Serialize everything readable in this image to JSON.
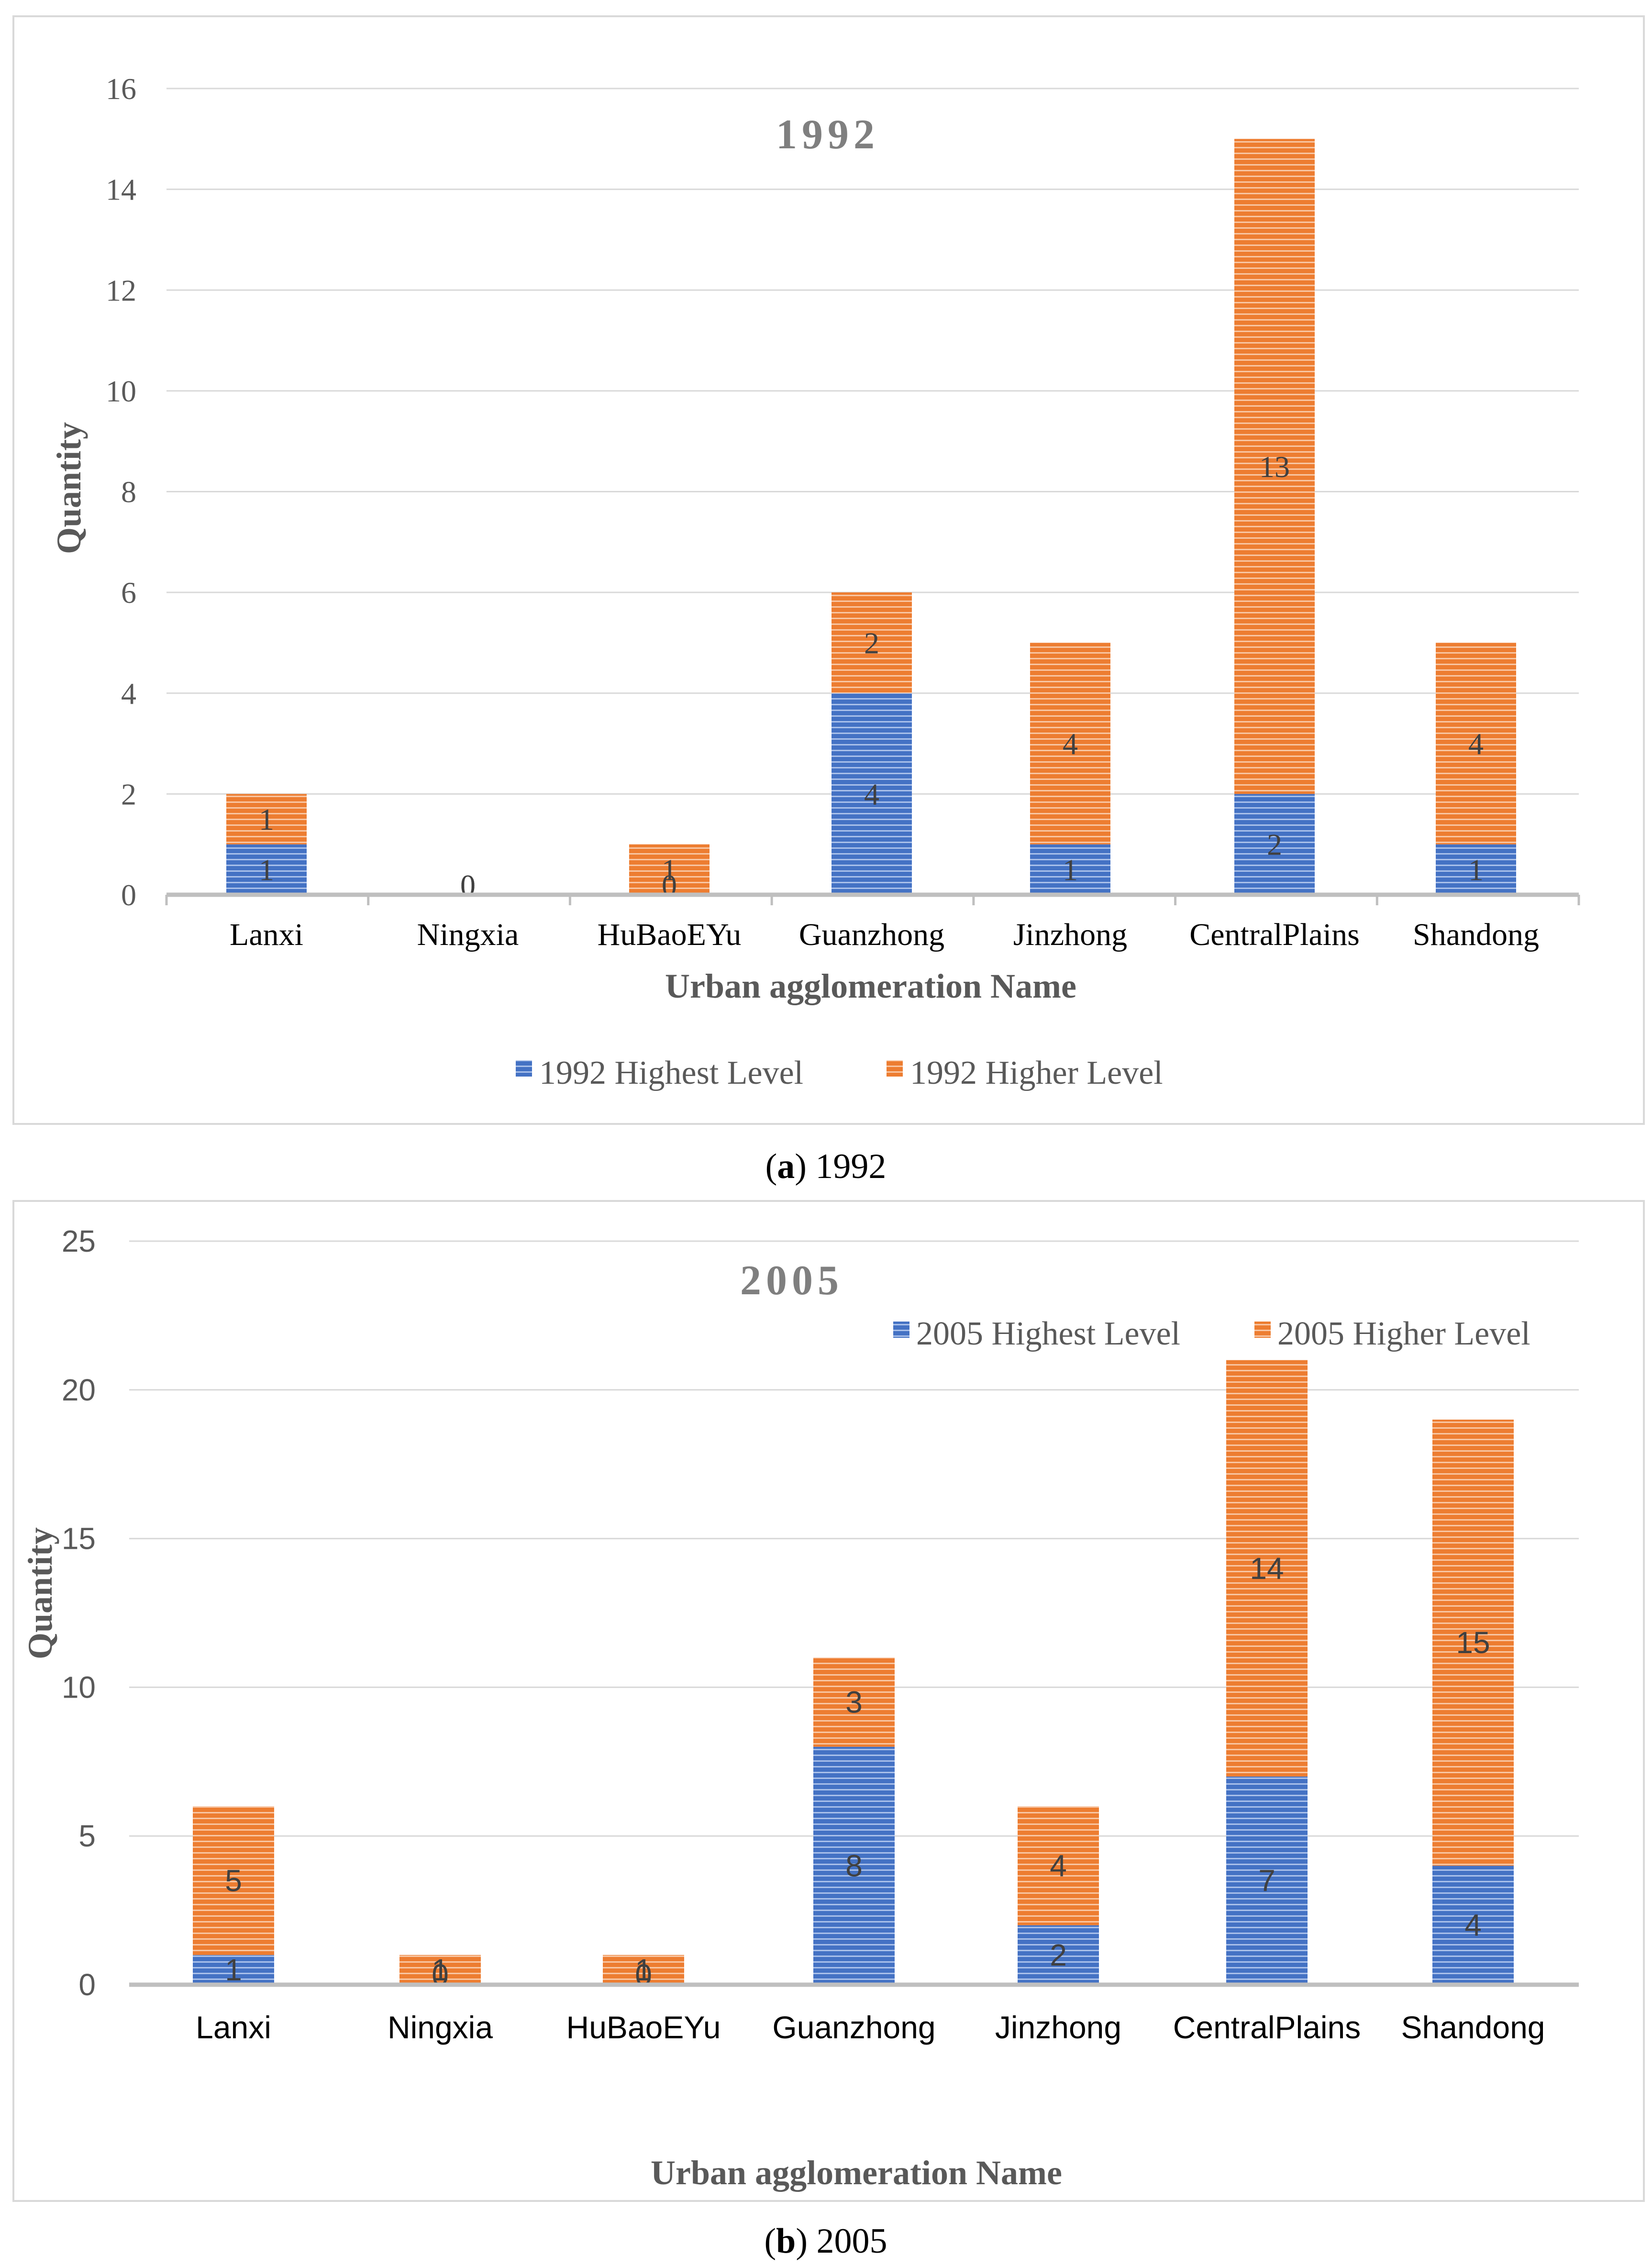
{
  "chart_data": [
    {
      "type": "bar",
      "stacked": true,
      "title": "1992",
      "xlabel": "Urban agglomeration Name",
      "ylabel": "Quantity",
      "ylim": [
        0,
        16
      ],
      "yticks": [
        "0",
        "2",
        "4",
        "6",
        "8",
        "10",
        "12",
        "14",
        "16"
      ],
      "categories": [
        "Lanxi",
        "Ningxia",
        "HuBaoEYu",
        "Guanzhong",
        "Jinzhong",
        "CentralPlains",
        "Shandong"
      ],
      "series": [
        {
          "name": "1992 Highest Level",
          "color": "#4472c4",
          "values": [
            1,
            0,
            0,
            4,
            1,
            2,
            1
          ]
        },
        {
          "name": "1992 Higher Level",
          "color": "#ed7d31",
          "values": [
            1,
            0,
            1,
            2,
            4,
            13,
            4
          ]
        }
      ],
      "legend": "bottom",
      "caption_letter": "a",
      "caption_rest": ") 1992"
    },
    {
      "type": "bar",
      "stacked": true,
      "title": "2005",
      "xlabel": "Urban agglomeration Name",
      "ylabel": "Quantity",
      "ylim": [
        0,
        25
      ],
      "yticks": [
        "0",
        "5",
        "10",
        "15",
        "20",
        "25"
      ],
      "categories": [
        "Lanxi",
        "Ningxia",
        "HuBaoEYu",
        "Guanzhong",
        "Jinzhong",
        "CentralPlains",
        "Shandong"
      ],
      "series": [
        {
          "name": "2005 Highest Level",
          "color": "#4472c4",
          "values": [
            1,
            0,
            0,
            8,
            2,
            7,
            4
          ]
        },
        {
          "name": "2005 Higher Level",
          "color": "#ed7d31",
          "values": [
            5,
            1,
            1,
            3,
            4,
            14,
            15
          ]
        }
      ],
      "legend": "top-right",
      "caption_letter": "b",
      "caption_rest": ") 2005"
    }
  ]
}
